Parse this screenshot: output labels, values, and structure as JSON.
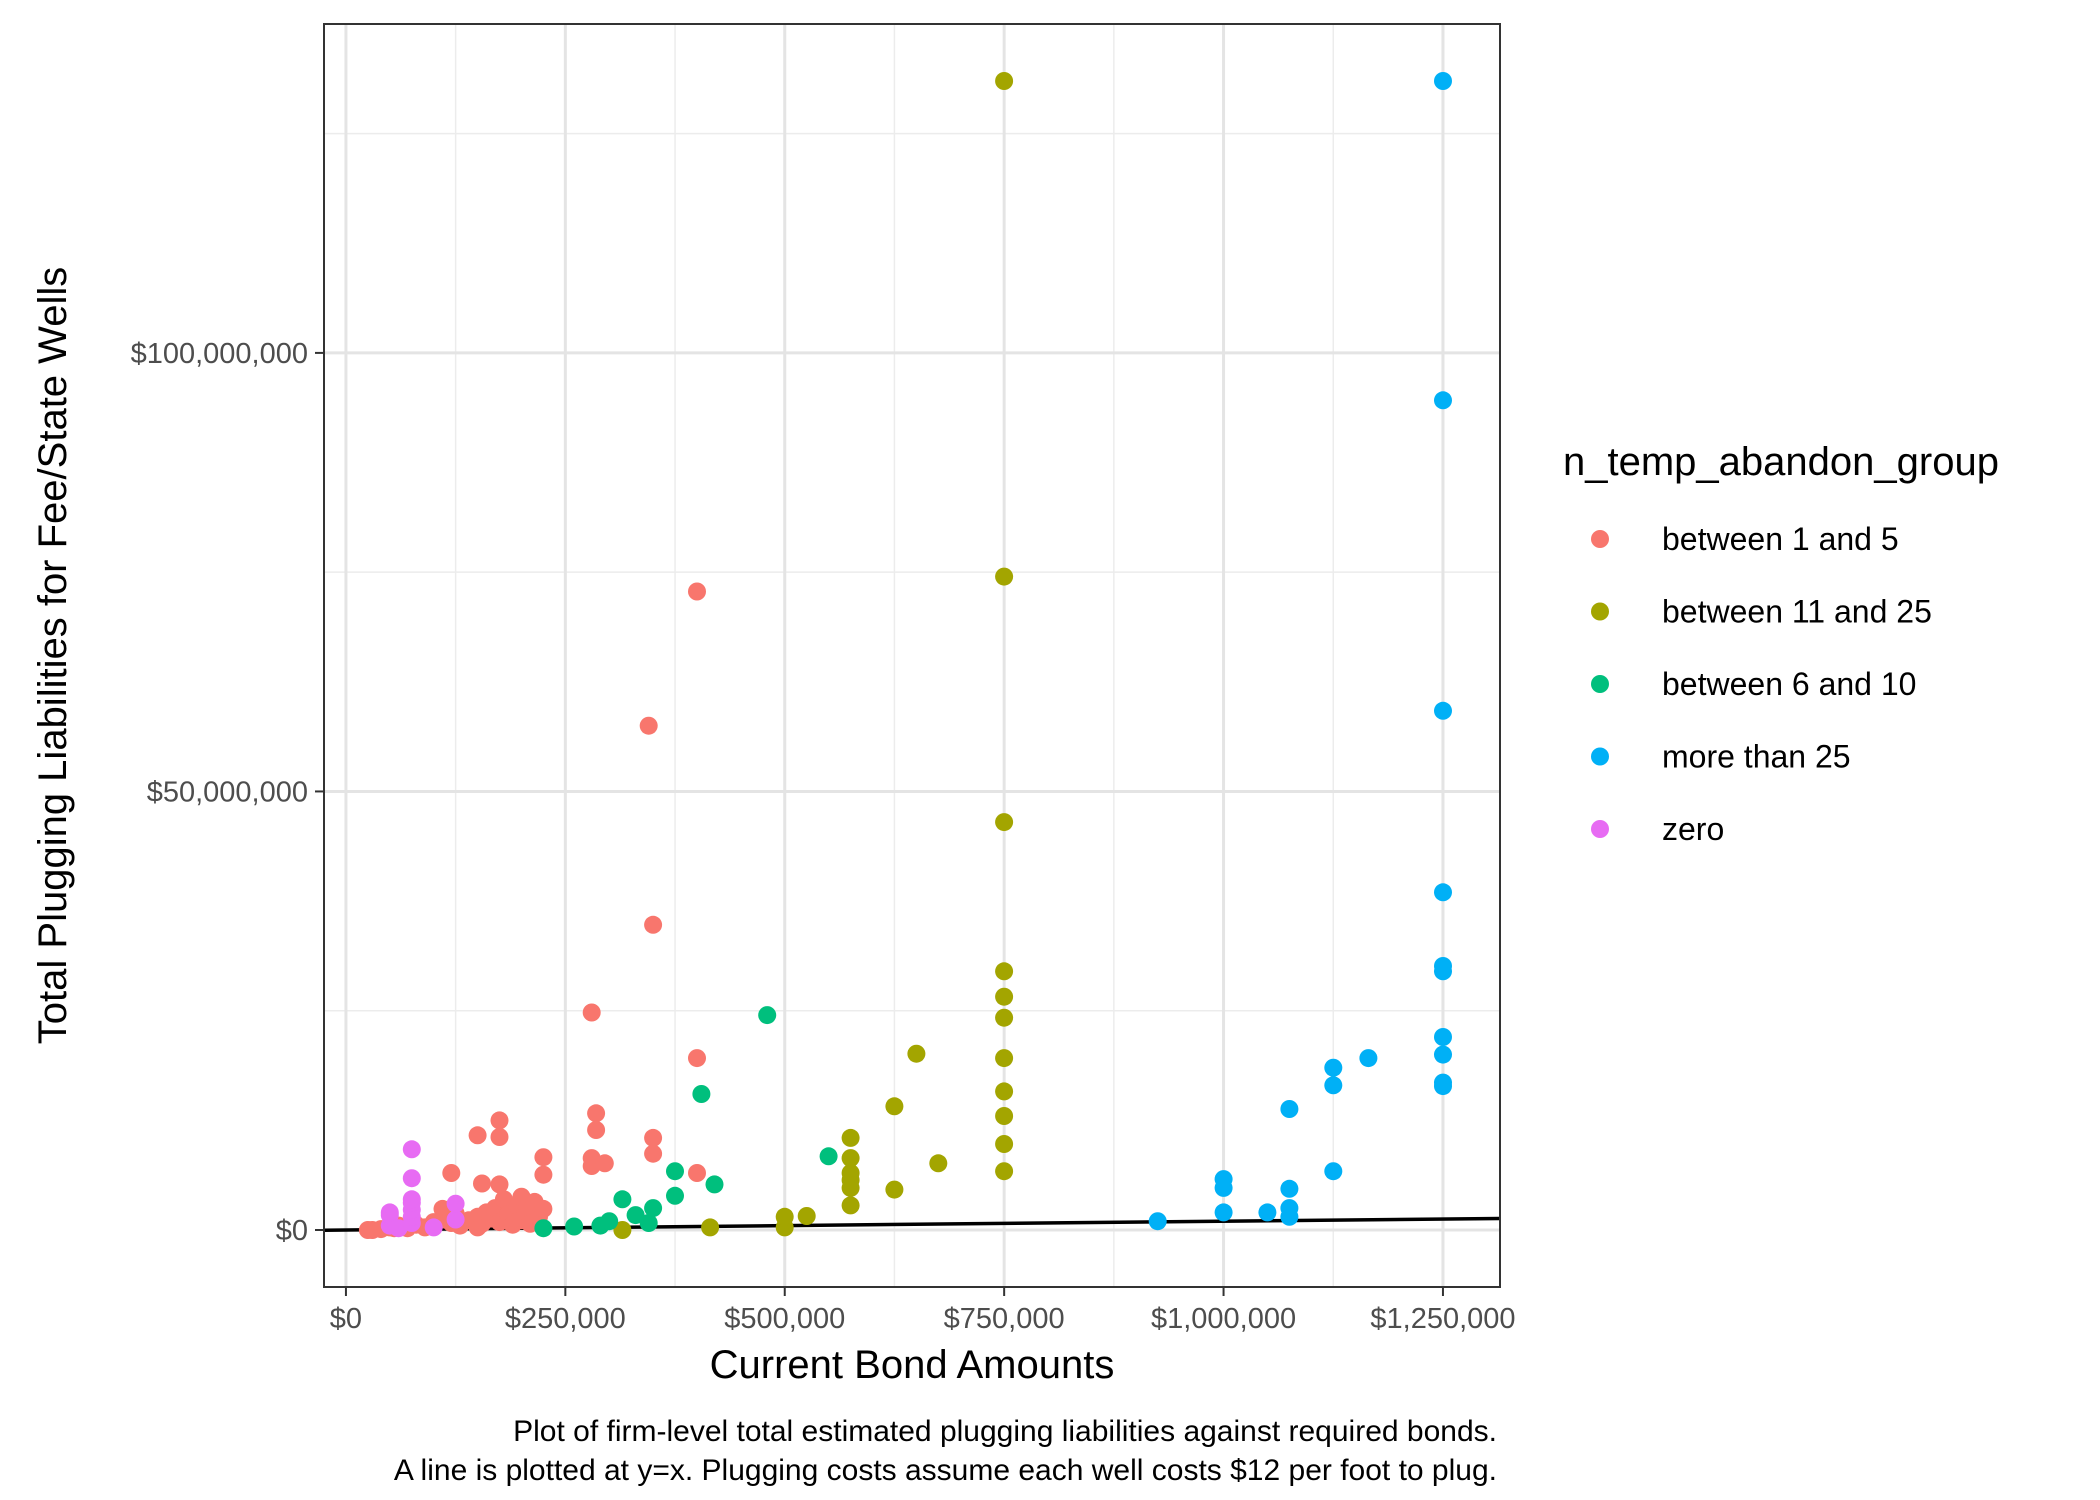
{
  "chart_data": {
    "type": "scatter",
    "xlabel": "Current Bond Amounts",
    "ylabel": "Total Plugging Liabilities for Fee/State Wells",
    "caption": [
      "Plot of firm-level total estimated plugging liabilities against required bonds.",
      "A line is plotted at y=x. Plugging costs assume each well costs $12 per foot to plug."
    ],
    "xlim": [
      -25000,
      1315000
    ],
    "ylim": [
      -6500000,
      137500000
    ],
    "x_ticks": [
      0,
      250000,
      500000,
      750000,
      1000000,
      1250000
    ],
    "x_tick_labels": [
      "$0",
      "$250,000",
      "$500,000",
      "$750,000",
      "$1,000,000",
      "$1,250,000"
    ],
    "y_ticks": [
      0,
      50000000,
      100000000
    ],
    "y_tick_labels": [
      "$0",
      "$50,000,000",
      "$100,000,000"
    ],
    "grid": true,
    "legend": {
      "title": "n_temp_abandon_group",
      "position": "right"
    },
    "reference_line": {
      "label": "y=x",
      "slope": 1,
      "intercept": 0,
      "color": "#000000"
    },
    "series": [
      {
        "name": "between 1 and 5",
        "color": "#F8766D",
        "points": [
          [
            25000,
            0
          ],
          [
            30000,
            0
          ],
          [
            40000,
            100000
          ],
          [
            50000,
            300000
          ],
          [
            55000,
            200000
          ],
          [
            60000,
            500000
          ],
          [
            70000,
            200000
          ],
          [
            80000,
            600000
          ],
          [
            90000,
            300000
          ],
          [
            100000,
            900000
          ],
          [
            100000,
            400000
          ],
          [
            110000,
            1200000
          ],
          [
            110000,
            2400000
          ],
          [
            120000,
            800000
          ],
          [
            125000,
            1900000
          ],
          [
            130000,
            500000
          ],
          [
            140000,
            1100000
          ],
          [
            150000,
            300000
          ],
          [
            150000,
            1500000
          ],
          [
            155000,
            700000
          ],
          [
            160000,
            2000000
          ],
          [
            165000,
            1300000
          ],
          [
            170000,
            2500000
          ],
          [
            175000,
            900000
          ],
          [
            180000,
            3500000
          ],
          [
            185000,
            1800000
          ],
          [
            190000,
            600000
          ],
          [
            195000,
            2800000
          ],
          [
            200000,
            1100000
          ],
          [
            200000,
            3800000
          ],
          [
            205000,
            2100000
          ],
          [
            210000,
            700000
          ],
          [
            215000,
            3200000
          ],
          [
            220000,
            1500000
          ],
          [
            225000,
            2400000
          ],
          [
            225000,
            6300000
          ],
          [
            120000,
            6500000
          ],
          [
            150000,
            10800000
          ],
          [
            175000,
            10600000
          ],
          [
            175000,
            12500000
          ],
          [
            155000,
            5300000
          ],
          [
            175000,
            5200000
          ],
          [
            225000,
            8300000
          ],
          [
            280000,
            8200000
          ],
          [
            280000,
            7300000
          ],
          [
            285000,
            11400000
          ],
          [
            285000,
            13300000
          ],
          [
            295000,
            7600000
          ],
          [
            280000,
            24800000
          ],
          [
            350000,
            8700000
          ],
          [
            350000,
            10500000
          ],
          [
            345000,
            57500000
          ],
          [
            350000,
            34800000
          ],
          [
            400000,
            72800000
          ],
          [
            400000,
            19600000
          ],
          [
            400000,
            6500000
          ]
        ]
      },
      {
        "name": "between 11 and 25",
        "color": "#A3A500",
        "points": [
          [
            315000,
            0
          ],
          [
            415000,
            300000
          ],
          [
            500000,
            300000
          ],
          [
            500000,
            1500000
          ],
          [
            525000,
            1600000
          ],
          [
            575000,
            2800000
          ],
          [
            575000,
            4800000
          ],
          [
            575000,
            5700000
          ],
          [
            575000,
            6500000
          ],
          [
            575000,
            8200000
          ],
          [
            575000,
            10500000
          ],
          [
            625000,
            4600000
          ],
          [
            625000,
            14100000
          ],
          [
            650000,
            20100000
          ],
          [
            675000,
            7600000
          ],
          [
            750000,
            6700000
          ],
          [
            750000,
            9800000
          ],
          [
            750000,
            13000000
          ],
          [
            750000,
            15800000
          ],
          [
            750000,
            19600000
          ],
          [
            750000,
            24200000
          ],
          [
            750000,
            26600000
          ],
          [
            750000,
            29500000
          ],
          [
            750000,
            46500000
          ],
          [
            750000,
            74500000
          ],
          [
            750000,
            131000000
          ]
        ]
      },
      {
        "name": "between 6 and 10",
        "color": "#00BF7D",
        "points": [
          [
            225000,
            200000
          ],
          [
            260000,
            400000
          ],
          [
            290000,
            500000
          ],
          [
            300000,
            1000000
          ],
          [
            315000,
            3500000
          ],
          [
            330000,
            1700000
          ],
          [
            345000,
            800000
          ],
          [
            350000,
            2500000
          ],
          [
            375000,
            3900000
          ],
          [
            375000,
            6700000
          ],
          [
            405000,
            15500000
          ],
          [
            420000,
            5200000
          ],
          [
            480000,
            24500000
          ],
          [
            550000,
            8400000
          ]
        ]
      },
      {
        "name": "more than 25",
        "color": "#00B0F6",
        "points": [
          [
            925000,
            1000000
          ],
          [
            1000000,
            2000000
          ],
          [
            1000000,
            4800000
          ],
          [
            1000000,
            5800000
          ],
          [
            1050000,
            2000000
          ],
          [
            1075000,
            1500000
          ],
          [
            1075000,
            2500000
          ],
          [
            1075000,
            4700000
          ],
          [
            1075000,
            13800000
          ],
          [
            1125000,
            6700000
          ],
          [
            1125000,
            16500000
          ],
          [
            1125000,
            18500000
          ],
          [
            1165000,
            19600000
          ],
          [
            1250000,
            16400000
          ],
          [
            1250000,
            16800000
          ],
          [
            1250000,
            20000000
          ],
          [
            1250000,
            22000000
          ],
          [
            1250000,
            29500000
          ],
          [
            1250000,
            30100000
          ],
          [
            1250000,
            38500000
          ],
          [
            1250000,
            59200000
          ],
          [
            1250000,
            94600000
          ],
          [
            1250000,
            131000000
          ]
        ]
      },
      {
        "name": "zero",
        "color": "#E76BF3",
        "points": [
          [
            50000,
            500000
          ],
          [
            50000,
            1700000
          ],
          [
            50000,
            2000000
          ],
          [
            60000,
            200000
          ],
          [
            75000,
            800000
          ],
          [
            75000,
            1500000
          ],
          [
            75000,
            2300000
          ],
          [
            75000,
            3100000
          ],
          [
            75000,
            3500000
          ],
          [
            75000,
            5900000
          ],
          [
            75000,
            9200000
          ],
          [
            100000,
            300000
          ],
          [
            125000,
            1200000
          ],
          [
            125000,
            3000000
          ]
        ]
      }
    ]
  }
}
